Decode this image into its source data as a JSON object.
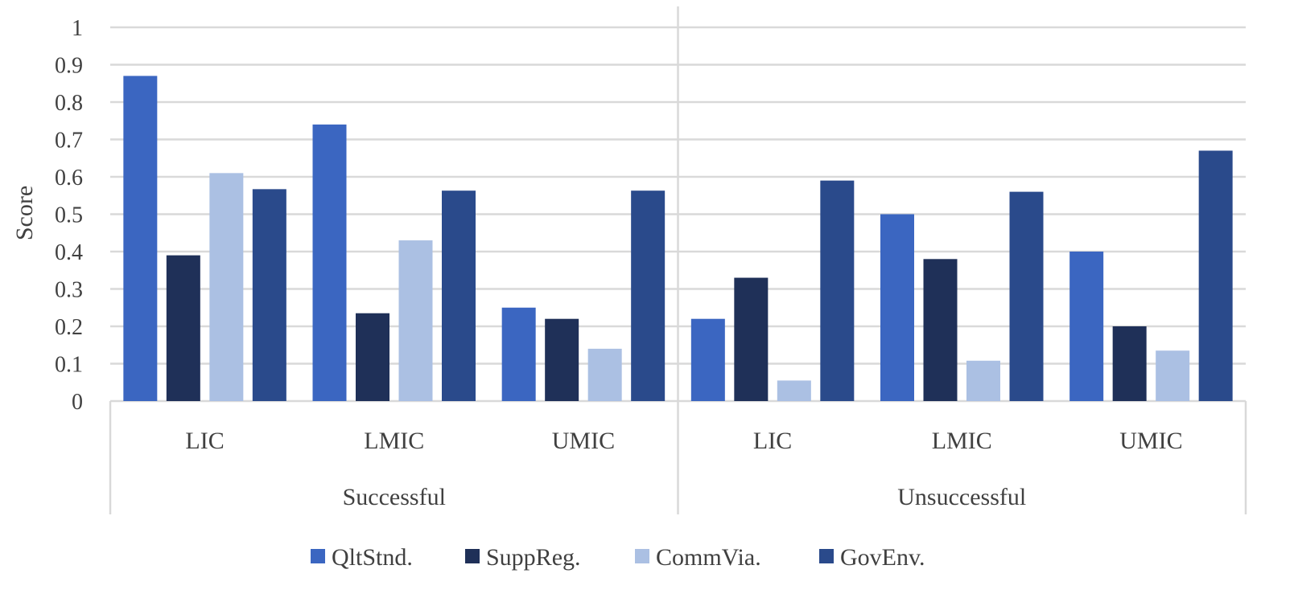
{
  "chart_data": {
    "type": "bar",
    "title": "",
    "xlabel": "",
    "ylabel": "Score",
    "ylim": [
      0,
      1
    ],
    "yticks": [
      "0",
      "0.1",
      "0.2",
      "0.3",
      "0.4",
      "0.5",
      "0.6",
      "0.7",
      "0.8",
      "0.9",
      "1"
    ],
    "legend_position": "bottom",
    "grid": true,
    "groups": [
      {
        "label": "Successful",
        "categories": [
          "LIC",
          "LMIC",
          "UMIC"
        ]
      },
      {
        "label": "Unsuccessful",
        "categories": [
          "LIC",
          "LMIC",
          "UMIC"
        ]
      }
    ],
    "series": [
      {
        "name": "QltStnd.",
        "color": "#3b66c1",
        "values": [
          0.87,
          0.74,
          0.25,
          0.22,
          0.5,
          0.4
        ]
      },
      {
        "name": "SuppReg.",
        "color": "#1f3058",
        "values": [
          0.39,
          0.235,
          0.22,
          0.33,
          0.38,
          0.2
        ]
      },
      {
        "name": "CommVia.",
        "color": "#abc0e3",
        "values": [
          0.61,
          0.43,
          0.14,
          0.055,
          0.108,
          0.135
        ]
      },
      {
        "name": "GovEnv.",
        "color": "#2a4a8b",
        "values": [
          0.567,
          0.563,
          0.563,
          0.59,
          0.56,
          0.67
        ]
      }
    ]
  }
}
